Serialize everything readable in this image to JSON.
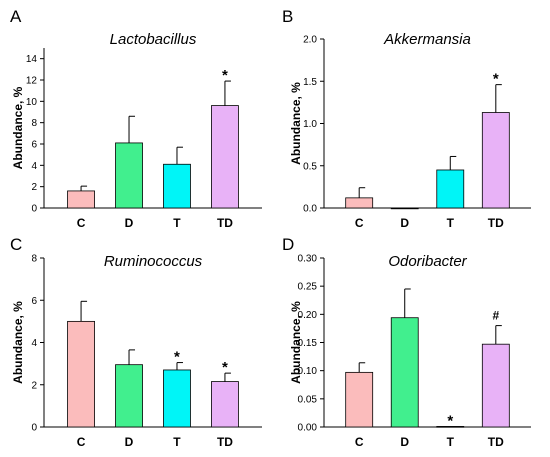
{
  "colors": {
    "C": "#fbbcbc",
    "D": "#41ef8e",
    "T": "#00f5f7",
    "TD": "#e8b2f7",
    "axis": "#000000"
  },
  "chart_data": [
    {
      "panel": "A",
      "type": "bar",
      "title": "Lactobacillus",
      "ylabel": "Abundance, %",
      "xlabel": "",
      "ylim": [
        0,
        15
      ],
      "yticks": [
        "0",
        "2",
        "4",
        "6",
        "8",
        "10",
        "12",
        "14"
      ],
      "categories": [
        "C",
        "D",
        "T",
        "TD"
      ],
      "values": [
        1.6,
        6.1,
        4.1,
        9.6
      ],
      "errors": [
        0.45,
        2.5,
        1.6,
        2.3
      ],
      "markers": [
        "",
        "",
        "",
        "*"
      ]
    },
    {
      "panel": "B",
      "type": "bar",
      "title": "Akkermansia",
      "ylabel": "Abundance, %",
      "xlabel": "",
      "ylim": [
        0,
        2.0
      ],
      "yticks": [
        "0.0",
        "0.5",
        "1.0",
        "1.5",
        "2.0"
      ],
      "categories": [
        "C",
        "D",
        "T",
        "TD"
      ],
      "values": [
        0.12,
        0.0,
        0.45,
        1.13
      ],
      "errors": [
        0.12,
        0.0,
        0.16,
        0.33
      ],
      "markers": [
        "",
        "",
        "",
        "*"
      ]
    },
    {
      "panel": "C",
      "type": "bar",
      "title": "Ruminococcus",
      "ylabel": "Abundance, %",
      "xlabel": "",
      "ylim": [
        0,
        8
      ],
      "yticks": [
        "0",
        "2",
        "4",
        "6",
        "8"
      ],
      "categories": [
        "C",
        "D",
        "T",
        "TD"
      ],
      "values": [
        5.0,
        2.95,
        2.7,
        2.15
      ],
      "errors": [
        0.95,
        0.7,
        0.35,
        0.4
      ],
      "markers": [
        "",
        "",
        "*",
        "*"
      ]
    },
    {
      "panel": "D",
      "type": "bar",
      "title": "Odoribacter",
      "ylabel": "Abundance, %",
      "xlabel": "",
      "ylim": [
        0,
        0.3
      ],
      "yticks": [
        "0.00",
        "0.05",
        "0.10",
        "0.15",
        "0.20",
        "0.25",
        "0.30"
      ],
      "categories": [
        "C",
        "D",
        "T",
        "TD"
      ],
      "values": [
        0.097,
        0.194,
        0.001,
        0.147
      ],
      "errors": [
        0.017,
        0.051,
        0.0,
        0.033
      ],
      "markers": [
        "",
        "",
        "*",
        "#"
      ]
    }
  ]
}
